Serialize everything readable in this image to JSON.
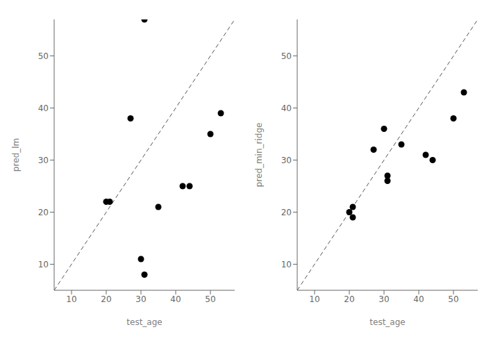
{
  "chart_data": [
    {
      "type": "scatter",
      "xlabel": "test_age",
      "ylabel": "pred_lm",
      "xlim": [
        5,
        57
      ],
      "ylim": [
        5,
        57
      ],
      "xticks": [
        10,
        20,
        30,
        40,
        50
      ],
      "yticks": [
        10,
        20,
        30,
        40,
        50
      ],
      "grid": false,
      "series": [
        {
          "type": "line",
          "x": [
            5,
            57
          ],
          "values": [
            5,
            57
          ],
          "color": "#555555",
          "line_style": "dashed"
        },
        {
          "type": "scatter",
          "x": [
            20,
            21,
            30,
            27,
            31,
            31,
            35,
            42,
            44,
            50,
            53
          ],
          "values": [
            22,
            22,
            11,
            38,
            57,
            8,
            21,
            25,
            25,
            35,
            39
          ],
          "color": "#000000",
          "marker": "circle"
        }
      ]
    },
    {
      "type": "scatter",
      "xlabel": "test_age",
      "ylabel": "pred_min_ridge",
      "xlim": [
        5,
        57
      ],
      "ylim": [
        5,
        57
      ],
      "xticks": [
        10,
        20,
        30,
        40,
        50
      ],
      "yticks": [
        10,
        20,
        30,
        40,
        50
      ],
      "grid": false,
      "series": [
        {
          "type": "line",
          "x": [
            5,
            57
          ],
          "values": [
            5,
            57
          ],
          "color": "#555555",
          "line_style": "dashed"
        },
        {
          "type": "scatter",
          "x": [
            20,
            21,
            21,
            27,
            30,
            31,
            31,
            35,
            42,
            44,
            50,
            53
          ],
          "values": [
            20,
            21,
            19,
            32,
            36,
            27,
            26,
            33,
            31,
            30,
            38,
            43
          ],
          "color": "#000000",
          "marker": "circle"
        }
      ]
    }
  ]
}
